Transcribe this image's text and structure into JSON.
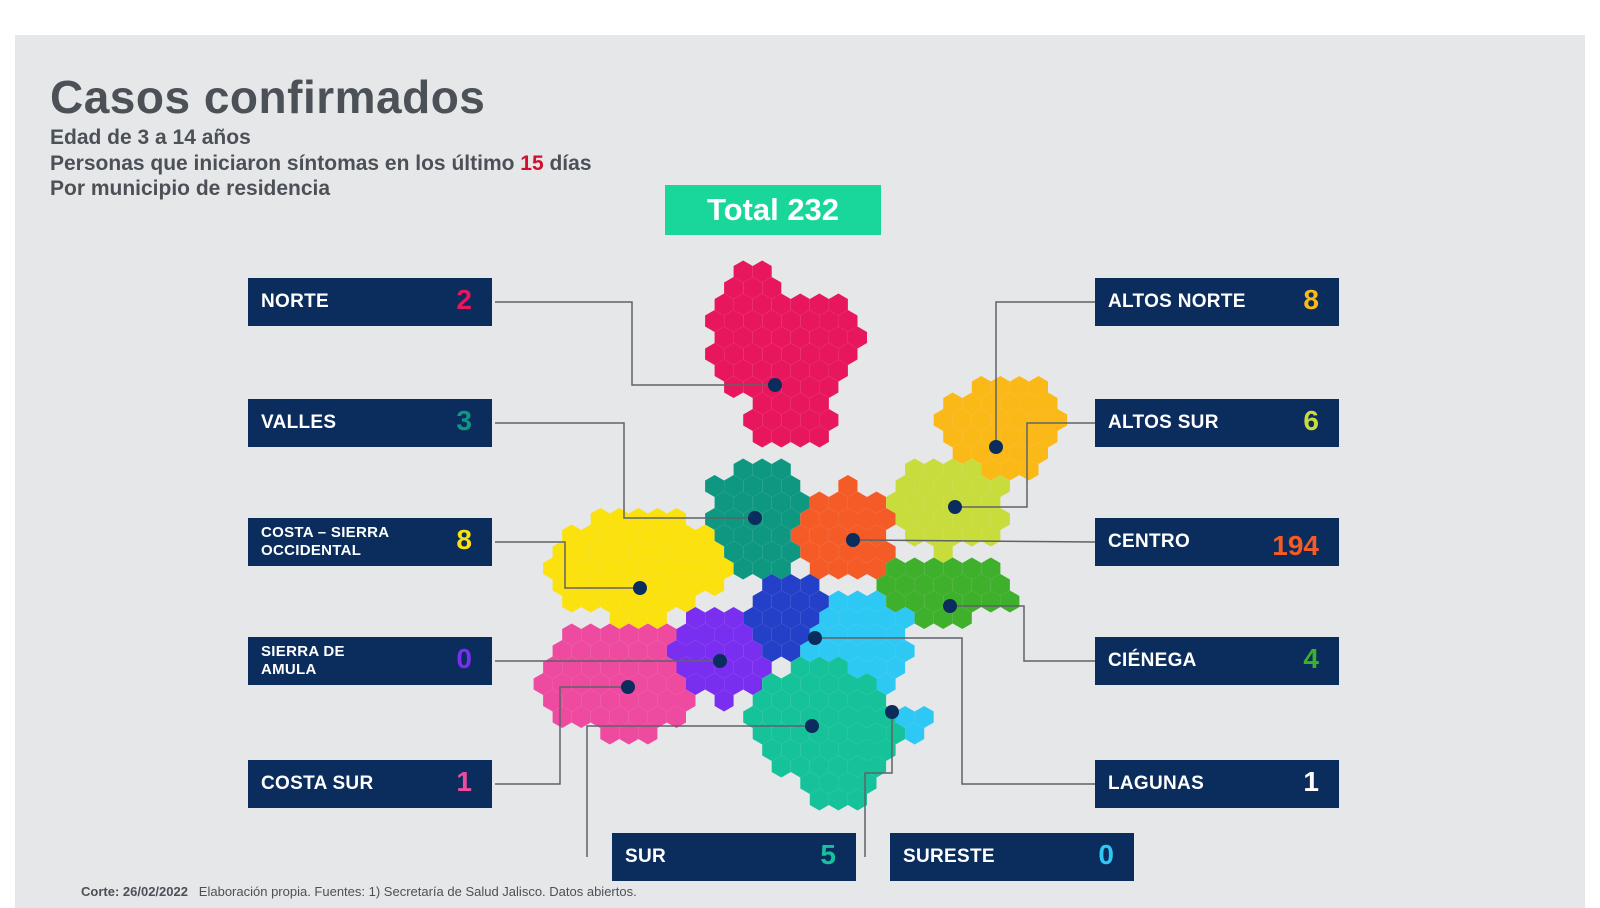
{
  "title": "Casos confirmados",
  "subtitle_1": "Edad de 3 a 14 años",
  "subtitle_2_pre": "Personas que iniciaron síntomas en los último ",
  "subtitle_2_num": "15",
  "subtitle_2_post": " días",
  "subtitle_3": "Por municipio de residencia",
  "total_label": "Total 232",
  "colors": {
    "panel": "#e6e7e8",
    "box": "#0b2d5e",
    "total": "#19d69b",
    "text": "#4b5157"
  },
  "regions": {
    "norte": {
      "name": "NORTE",
      "value": "2",
      "color": "#e8175d"
    },
    "valles": {
      "name": "VALLES",
      "value": "3",
      "color": "#0e9882"
    },
    "costa_sierra": {
      "name_1": "COSTA – SIERRA",
      "name_2": "OCCIDENTAL",
      "value": "8",
      "color": "#fbe10e"
    },
    "sierra_amula": {
      "name_1": "SIERRA DE",
      "name_2": "AMULA",
      "value": "0",
      "color": "#7a2ff0"
    },
    "costa_sur": {
      "name": "COSTA SUR",
      "value": "1",
      "color": "#ee4aa0"
    },
    "sur": {
      "name": "SUR",
      "value": "5",
      "color": "#16c29a"
    },
    "sureste": {
      "name": "SURESTE",
      "value": "0",
      "color": "#2ec8f5"
    },
    "lagunas": {
      "name": "LAGUNAS",
      "value": "1",
      "color": "#ffffff"
    },
    "cienega": {
      "name": "CIÉNEGA",
      "value": "4",
      "color": "#3fb02b"
    },
    "centro": {
      "name": "CENTRO",
      "value": "194",
      "color": "#f55b26"
    },
    "altos_sur": {
      "name": "ALTOS SUR",
      "value": "6",
      "color": "#c8dc3c"
    },
    "altos_norte": {
      "name": "ALTOS NORTE",
      "value": "8",
      "color": "#fbb917"
    }
  },
  "footer_bold": "Corte: 26/02/2022",
  "footer_rest": "Elaboración propia.  Fuentes:  1) Secretaría de Salud Jalisco.  Datos abiertos."
}
